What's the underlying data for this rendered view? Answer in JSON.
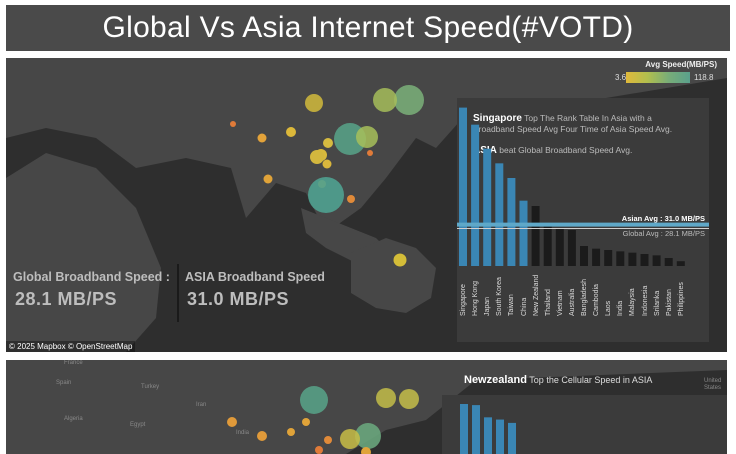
{
  "header": {
    "title": "Global Vs Asia Internet Speed(#VOTD)"
  },
  "legend": {
    "title": "Avg Speed(MB/PS)",
    "min": "3.6",
    "max": "118.8"
  },
  "stats": {
    "global_label": "Global Broadband Speed :",
    "global_value": "28.1 MB/PS",
    "asia_label": "ASIA Broadband Speed",
    "asia_value": "31.0 MB/PS"
  },
  "attribution": "© 2025 Mapbox © OpenStreetMap",
  "notes": {
    "singapore_bold": "Singapore",
    "singapore_text_1": " Top The Rank Table In Asia with a",
    "singapore_text_2": "Broadband Speed Avg Four Time of Asia Speed Avg.",
    "asia_bold": "ASIA",
    "asia_text": "  beat Global Broadband Speed Avg."
  },
  "avg_lines": {
    "asian": "Asian Avg : 31.0 MB/PS",
    "global": "Global Avg : 28.1 MB/PS"
  },
  "panel2": {
    "title_bold": "Newzealand",
    "title_text": " Top the Cellular Speed in ASIA",
    "map_labels": [
      "France",
      "Spain",
      "Turkey",
      "Iran",
      "Algeria",
      "Egypt",
      "India",
      "United States"
    ]
  },
  "colors": {
    "asia_bar": "#3a86b4",
    "other_bar": "#1b1b1b",
    "asian_line": "#5fa8c8",
    "global_line": "#d0d0d0"
  },
  "chart_data": {
    "type": "bar",
    "title": "",
    "categories": [
      "Singapore",
      "Hong Kong",
      "Japan",
      "South Korea",
      "Taiwan",
      "China",
      "New Zealand",
      "Thailand",
      "Vietnam",
      "Australia",
      "Bangladesh",
      "Cambodia",
      "Laos",
      "India",
      "Malaysia",
      "Indonesia",
      "Srilanka",
      "Pakistan",
      "Philippines"
    ],
    "values": [
      118.8,
      106,
      88,
      77,
      66,
      49,
      45,
      31,
      28,
      27,
      15,
      13,
      12,
      11,
      10,
      9,
      8,
      6,
      3.6
    ],
    "asia_highlight": [
      true,
      true,
      true,
      true,
      true,
      true,
      false,
      false,
      false,
      false,
      false,
      false,
      false,
      false,
      false,
      false,
      false,
      false,
      false
    ],
    "reference_lines": [
      {
        "name": "Asian Avg",
        "value": 31.0
      },
      {
        "name": "Global Avg",
        "value": 28.1
      }
    ],
    "ylim": [
      0,
      120
    ]
  },
  "chart2_values": [
    45,
    44,
    33,
    31,
    28
  ]
}
